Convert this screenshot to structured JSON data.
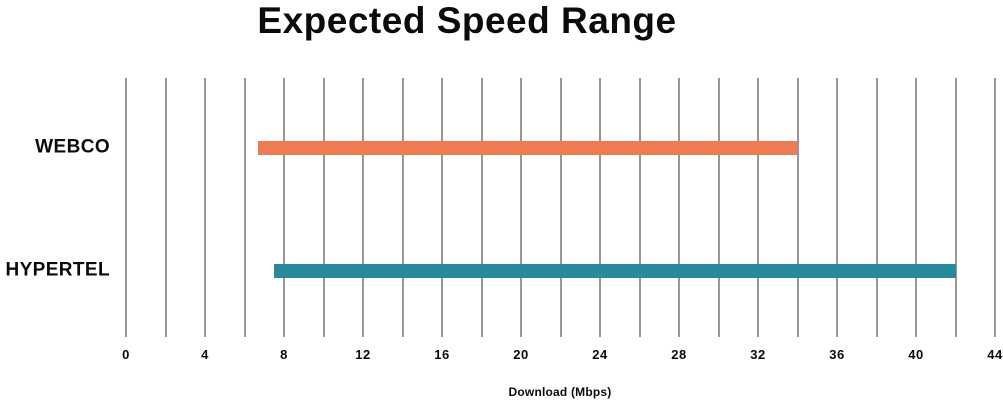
{
  "chart_data": {
    "type": "bar",
    "subtype": "horizontal-range-bars",
    "title": "Expected Speed Range",
    "xlabel": "Download (Mbps)",
    "categories": [
      "WEBCO",
      "HYPERTEL"
    ],
    "series": [
      {
        "name": "WEBCO",
        "range_mbps": [
          6.7,
          34
        ],
        "color": "#EE7B53"
      },
      {
        "name": "HYPERTEL",
        "range_mbps": [
          7.5,
          42
        ],
        "color": "#28899A"
      }
    ],
    "xlim": [
      0,
      44
    ],
    "x_ticks": [
      0,
      4,
      8,
      12,
      16,
      20,
      24,
      28,
      32,
      36,
      40,
      44
    ],
    "gridline_step": 2,
    "grid": "vertical-only",
    "legend": "none",
    "colors": {
      "gridline": "#9B9691",
      "text": "#0B0B0B",
      "background": "#FFFFFF"
    }
  }
}
